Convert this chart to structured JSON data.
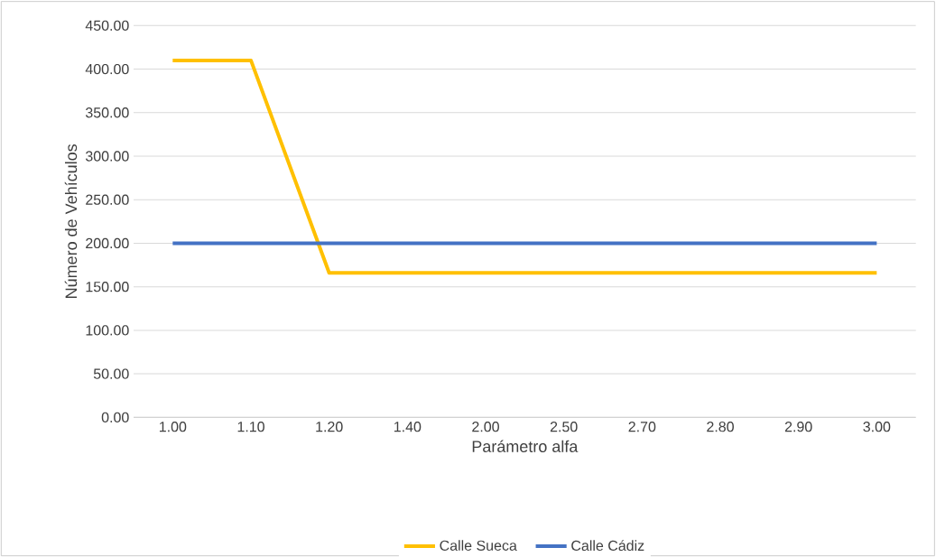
{
  "chart_data": {
    "type": "line",
    "xlabel": "Parámetro alfa",
    "ylabel": "Número de Vehículos",
    "categories": [
      "1.00",
      "1.10",
      "1.20",
      "1.40",
      "2.00",
      "2.50",
      "2.70",
      "2.80",
      "2.90",
      "3.00"
    ],
    "series": [
      {
        "name": "Calle Sueca",
        "color": "#ffc000",
        "values": [
          410,
          410,
          166,
          166,
          166,
          166,
          166,
          166,
          166,
          166
        ]
      },
      {
        "name": "Calle Cádiz",
        "color": "#4472c4",
        "values": [
          200,
          200,
          200,
          200,
          200,
          200,
          200,
          200,
          200,
          200
        ]
      }
    ],
    "ylim": [
      0,
      450
    ],
    "yticks": [
      {
        "value": 0,
        "label": "0.00"
      },
      {
        "value": 50,
        "label": "50.00"
      },
      {
        "value": 100,
        "label": "100.00"
      },
      {
        "value": 150,
        "label": "150.00"
      },
      {
        "value": 200,
        "label": "200.00"
      },
      {
        "value": 250,
        "label": "250.00"
      },
      {
        "value": 300,
        "label": "300.00"
      },
      {
        "value": 350,
        "label": "350.00"
      },
      {
        "value": 400,
        "label": "400.00"
      },
      {
        "value": 450,
        "label": "450.00"
      }
    ],
    "grid": "y",
    "legend": "bottom",
    "marker": "none",
    "line_style": "solid"
  }
}
